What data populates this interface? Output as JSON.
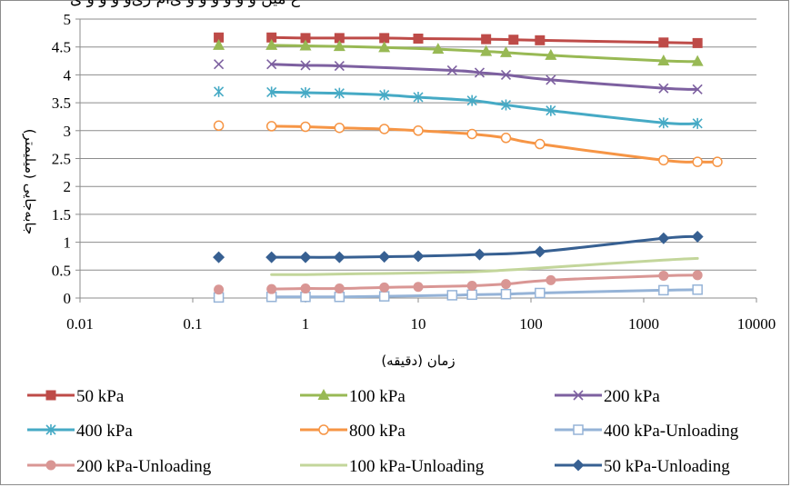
{
  "chart_data": {
    "type": "line",
    "title": "",
    "title_partial": "ع میں و ‌و ‌و‌ و و ‌و ‌ی‌ا‌م ‌ر‌ی‌و ‌و ‌و ‌و‌ ی",
    "xlabel": "زمان (دقیقه)",
    "ylabel": "جابه‌جایی (میلیمتر)",
    "x_scale": "log",
    "xlim": [
      0.01,
      10000
    ],
    "ylim": [
      0,
      5
    ],
    "x_ticks": [
      "0.01",
      "0.1",
      "1",
      "10",
      "100",
      "1000",
      "10000"
    ],
    "y_ticks": [
      "0",
      "0.5",
      "1",
      "1.5",
      "2",
      "2.5",
      "3",
      "3.5",
      "4",
      "4.5",
      "5"
    ],
    "grid": "horizontal",
    "legend_position": "bottom",
    "series": [
      {
        "name": "50 kPa",
        "color": "#be4b48",
        "marker": "square",
        "x": [
          0.17,
          0.5,
          1,
          2,
          5,
          10,
          40,
          70,
          120,
          1500,
          3000
        ],
        "y": [
          4.67,
          4.67,
          4.66,
          4.66,
          4.66,
          4.65,
          4.64,
          4.63,
          4.62,
          4.58,
          4.57
        ],
        "isolated_first": true
      },
      {
        "name": "100 kPa",
        "color": "#98b954",
        "marker": "triangle",
        "x": [
          0.17,
          0.5,
          1,
          2,
          5,
          15,
          40,
          60,
          150,
          1500,
          3000
        ],
        "y": [
          4.53,
          4.53,
          4.52,
          4.51,
          4.49,
          4.46,
          4.42,
          4.4,
          4.35,
          4.25,
          4.24
        ],
        "isolated_first": true
      },
      {
        "name": "200 kPa",
        "color": "#7d60a0",
        "marker": "x",
        "x": [
          0.17,
          0.5,
          1,
          2,
          20,
          35,
          60,
          150,
          1500,
          3000
        ],
        "y": [
          4.19,
          4.19,
          4.17,
          4.16,
          4.08,
          4.04,
          4.0,
          3.91,
          3.76,
          3.74
        ],
        "isolated_first": true
      },
      {
        "name": "400 kPa",
        "color": "#46aac5",
        "marker": "star",
        "x": [
          0.17,
          0.5,
          1,
          2,
          5,
          10,
          30,
          60,
          150,
          1500,
          3000
        ],
        "y": [
          3.7,
          3.69,
          3.68,
          3.67,
          3.64,
          3.6,
          3.54,
          3.46,
          3.36,
          3.14,
          3.13
        ],
        "isolated_first": true
      },
      {
        "name": "800 kPa",
        "color": "#f69545",
        "marker": "circle-open",
        "x": [
          0.17,
          0.5,
          1,
          2,
          5,
          10,
          30,
          60,
          120,
          1500,
          3000,
          4500
        ],
        "y": [
          3.09,
          3.08,
          3.07,
          3.05,
          3.03,
          3.0,
          2.94,
          2.87,
          2.76,
          2.47,
          2.44,
          2.44
        ],
        "isolated_first": true
      },
      {
        "name": "400 kPa-Unloading",
        "color": "#95b3d7",
        "marker": "square-open",
        "x": [
          0.17,
          0.5,
          1,
          2,
          5,
          20,
          30,
          60,
          120,
          1500,
          3000
        ],
        "y": [
          0.01,
          0.02,
          0.02,
          0.02,
          0.03,
          0.05,
          0.06,
          0.07,
          0.09,
          0.14,
          0.15
        ],
        "isolated_first": true
      },
      {
        "name": "200 kPa-Unloading",
        "color": "#d99694",
        "marker": "circle",
        "x": [
          0.17,
          0.5,
          1,
          2,
          5,
          10,
          30,
          60,
          150,
          1500,
          3000
        ],
        "y": [
          0.15,
          0.16,
          0.17,
          0.17,
          0.19,
          0.2,
          0.22,
          0.25,
          0.32,
          0.4,
          0.41
        ],
        "isolated_first": true
      },
      {
        "name": "100 kPa-Unloading",
        "color": "#c3d69b",
        "marker": "none",
        "x": [
          0.5,
          1,
          2,
          5,
          10,
          30,
          60,
          150,
          1500,
          3000
        ],
        "y": [
          0.42,
          0.42,
          0.43,
          0.44,
          0.45,
          0.47,
          0.5,
          0.55,
          0.68,
          0.71
        ],
        "isolated_first": false
      },
      {
        "name": "50 kPa-Unloading",
        "color": "#376092",
        "marker": "diamond",
        "x": [
          0.17,
          0.5,
          1,
          2,
          5,
          10,
          35,
          120,
          1500,
          3000
        ],
        "y": [
          0.73,
          0.73,
          0.73,
          0.73,
          0.74,
          0.75,
          0.78,
          0.83,
          1.07,
          1.1
        ],
        "isolated_first": true
      }
    ]
  }
}
